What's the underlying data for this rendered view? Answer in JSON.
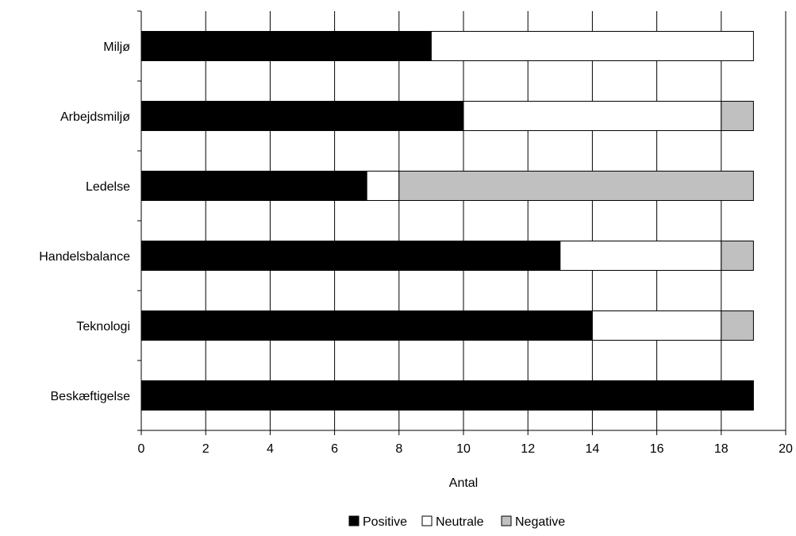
{
  "chart_data": {
    "type": "bar",
    "orientation": "horizontal",
    "stacked": true,
    "categories": [
      "Miljø",
      "Arbejdsmiljø",
      "Ledelse",
      "Handelsbalance",
      "Teknologi",
      "Beskæftigelse"
    ],
    "series": [
      {
        "name": "Positive",
        "values": [
          9,
          10,
          7,
          13,
          14,
          19
        ],
        "color": "#000000"
      },
      {
        "name": "Neutrale",
        "values": [
          10,
          8,
          1,
          5,
          4,
          0
        ],
        "color": "#ffffff"
      },
      {
        "name": "Negative",
        "values": [
          0,
          1,
          11,
          1,
          1,
          0
        ],
        "color": "#c0c0c0"
      }
    ],
    "xlabel": "Antal",
    "ylabel": "",
    "xlim": [
      0,
      20
    ],
    "xticks": [
      "0",
      "2",
      "4",
      "6",
      "8",
      "10",
      "12",
      "14",
      "16",
      "18",
      "20"
    ],
    "grid": "vertical",
    "legend": "bottom-center"
  }
}
